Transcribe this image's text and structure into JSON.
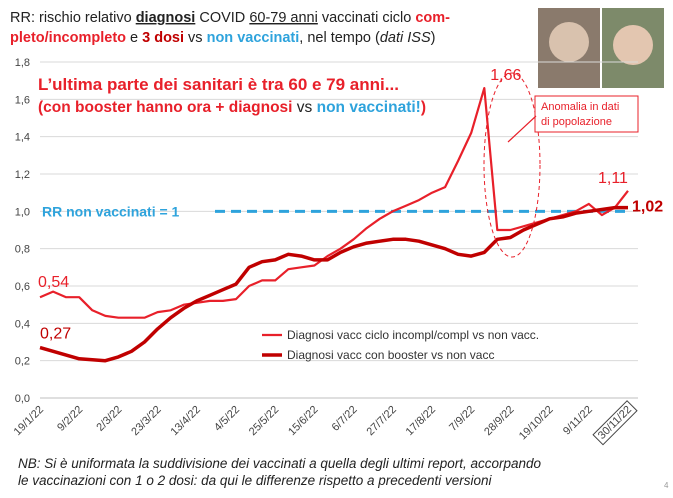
{
  "chart_data": {
    "type": "line",
    "title": [
      [
        "RR: rischio relativo ",
        "diagnosi",
        " COVID ",
        "60-79 anni",
        " vaccinati ciclo ",
        "com-"
      ],
      [
        "pleto/incompleto",
        " e ",
        "3 dosi",
        " vs ",
        "non vaccinati",
        ", nel tempo (",
        "dati ISS",
        ")"
      ]
    ],
    "headline": [
      "L’ultima parte dei sanitari è tra 60 e 79 anni...",
      [
        "(con booster hanno ora + diagnosi ",
        "vs ",
        "non vaccinati!",
        ")"
      ]
    ],
    "annotation": [
      "Anomalia in dati",
      "di popolazione"
    ],
    "reference": {
      "value": 1,
      "label": "RR non vaccinati = 1",
      "color": "#2ea3dc"
    },
    "footnote": [
      "NB: Si è uniformata la suddivisione dei vaccinati a quella degli ultimi report, accorpando",
      "le vaccinazioni con 1 o 2 dosi: da qui le differenze rispetto a precedenti versioni"
    ],
    "page_number": "4",
    "categories": [
      "19/1/22",
      null,
      null,
      "9/2/22",
      null,
      null,
      "2/3/22",
      null,
      null,
      "23/3/22",
      null,
      null,
      "13/4/22",
      null,
      null,
      "4/5/22",
      null,
      null,
      "25/5/22",
      null,
      null,
      "15/6/22",
      null,
      null,
      "6/7/22",
      null,
      null,
      "27/7/22",
      null,
      null,
      "17/8/22",
      null,
      null,
      "7/9/22",
      null,
      null,
      "28/9/22",
      null,
      null,
      "19/10/22",
      null,
      null,
      "9/11/22",
      null,
      null,
      "30/11/22"
    ],
    "series": [
      {
        "name": "Diagnosi vacc ciclo incompl/compl vs non vacc.",
        "color": "#e8202a",
        "width": 2.2,
        "values": [
          0.54,
          0.57,
          0.54,
          0.54,
          0.47,
          0.44,
          0.43,
          0.43,
          0.43,
          0.46,
          0.47,
          0.5,
          0.51,
          0.52,
          0.52,
          0.53,
          0.6,
          0.63,
          0.63,
          0.69,
          0.7,
          0.71,
          0.76,
          0.8,
          0.85,
          0.91,
          0.96,
          1.0,
          1.03,
          1.06,
          1.1,
          1.13,
          1.27,
          1.42,
          1.66,
          0.9,
          0.9,
          0.92,
          0.94,
          0.96,
          0.98,
          1.0,
          1.04,
          0.98,
          1.02,
          1.11
        ],
        "value_labels": [
          "0,54",
          null,
          null,
          null,
          null,
          null,
          null,
          null,
          null,
          null,
          null,
          null,
          null,
          null,
          null,
          null,
          null,
          null,
          null,
          null,
          null,
          null,
          null,
          null,
          null,
          null,
          null,
          null,
          null,
          null,
          null,
          null,
          null,
          null,
          "1,66",
          null,
          null,
          null,
          null,
          null,
          null,
          null,
          null,
          null,
          null,
          "1,11"
        ]
      },
      {
        "name": "Diagnosi vacc con booster vs non vacc",
        "color": "#c00000",
        "width": 3.5,
        "values": [
          0.27,
          0.25,
          0.23,
          0.21,
          0.205,
          0.2,
          0.22,
          0.25,
          0.3,
          0.37,
          0.43,
          0.48,
          0.52,
          0.55,
          0.58,
          0.61,
          0.7,
          0.73,
          0.74,
          0.77,
          0.76,
          0.74,
          0.74,
          0.78,
          0.81,
          0.83,
          0.84,
          0.85,
          0.85,
          0.84,
          0.82,
          0.8,
          0.77,
          0.76,
          0.78,
          0.85,
          0.86,
          0.9,
          0.93,
          0.96,
          0.97,
          0.99,
          1.0,
          1.01,
          1.02,
          1.02
        ],
        "value_labels": [
          "0,27",
          null,
          null,
          null,
          null,
          null,
          null,
          null,
          null,
          null,
          null,
          null,
          null,
          null,
          null,
          null,
          null,
          null,
          null,
          null,
          null,
          null,
          null,
          null,
          null,
          null,
          null,
          null,
          null,
          null,
          null,
          null,
          null,
          null,
          null,
          null,
          null,
          null,
          null,
          null,
          null,
          null,
          null,
          null,
          null,
          "1,02"
        ]
      }
    ],
    "ylim": [
      0,
      1.8
    ],
    "yticks": [
      {
        "value": 0,
        "label": "0,0"
      },
      {
        "value": 0.2,
        "label": "0,2"
      },
      {
        "value": 0.4,
        "label": "0,4"
      },
      {
        "value": 0.6,
        "label": "0,6"
      },
      {
        "value": 0.8,
        "label": "0,8"
      },
      {
        "value": 1,
        "label": "1,0"
      },
      {
        "value": 1.2,
        "label": "1,2"
      },
      {
        "value": 1.4,
        "label": "1,4"
      },
      {
        "value": 1.6,
        "label": "1,6"
      },
      {
        "value": 1.8,
        "label": "1,8"
      }
    ],
    "grid": true
  }
}
